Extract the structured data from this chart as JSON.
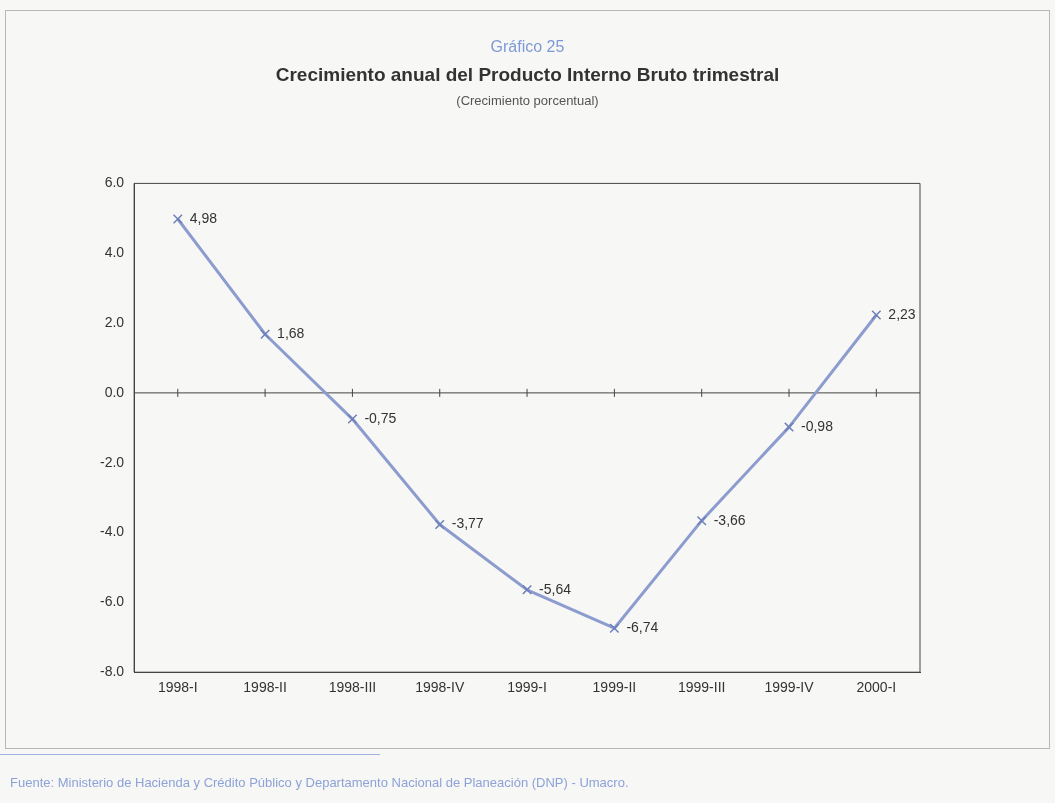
{
  "chart_data": {
    "type": "line",
    "title": "Crecimiento anual del Producto Interno Bruto trimestral",
    "subtitle": "(Crecimiento porcentual)",
    "annotations": [
      "Gráfico 25",
      "Fuente: Ministerio de Hacienda y Crédito Público y Departamento Nacional de Planeación (DNP) - Umacro."
    ],
    "categories": [
      "1998-I",
      "1998-II",
      "1998-III",
      "1998-IV",
      "1999-I",
      "1999-II",
      "1999-III",
      "1999-IV",
      "2000-I"
    ],
    "series": [
      {
        "color": "#8c9ccf",
        "values": [
          4.98,
          1.68,
          -0.75,
          -3.77,
          -5.64,
          -6.74,
          -3.66,
          -0.98,
          2.23
        ],
        "value_labels": [
          "4,98",
          "1,68",
          "-0,75",
          "-3,77",
          "-5,64",
          "-6,74",
          "-3,66",
          "-0,98",
          "2,23"
        ]
      }
    ],
    "ylim": [
      -8,
      6
    ],
    "yticks": [
      {
        "value": -8,
        "label": "-8.0"
      },
      {
        "value": -6,
        "label": "-6.0"
      },
      {
        "value": -4,
        "label": "-4.0"
      },
      {
        "value": -2,
        "label": "-2.0"
      },
      {
        "value": 0,
        "label": "0.0"
      },
      {
        "value": 2,
        "label": "2.0"
      },
      {
        "value": 4,
        "label": "4.0"
      },
      {
        "value": 6,
        "label": "6.0"
      }
    ],
    "ref_lines": [
      {
        "axis": "y",
        "value": 0,
        "color": "#444444"
      }
    ],
    "marker": "cross",
    "line_style": "solid",
    "legend": false,
    "grid": false
  }
}
